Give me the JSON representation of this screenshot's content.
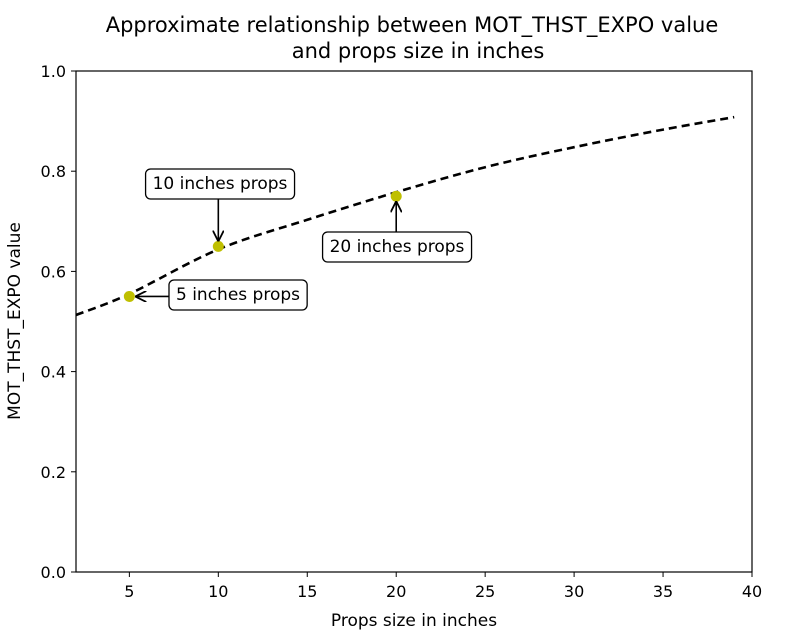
{
  "chart_data": {
    "type": "line",
    "title_lines": [
      "Approximate relationship between MOT_THST_EXPO value",
      "and props size in inches"
    ],
    "xlabel": "Props size in inches",
    "ylabel": "MOT_THST_EXPO value",
    "xlim": [
      2,
      40
    ],
    "ylim": [
      0.0,
      1.0
    ],
    "xticks": [
      5,
      10,
      15,
      20,
      25,
      30,
      35,
      40
    ],
    "yticks": [
      0.0,
      0.2,
      0.4,
      0.6,
      0.8,
      1.0
    ],
    "ytick_labels": [
      "0.0",
      "0.2",
      "0.4",
      "0.6",
      "0.8",
      "1.0"
    ],
    "curve": {
      "style": "dashed",
      "color": "#000000",
      "x": [
        2,
        5,
        10,
        15,
        20,
        25,
        30,
        35,
        39
      ],
      "y": [
        0.513,
        0.555,
        0.644,
        0.703,
        0.758,
        0.808,
        0.848,
        0.883,
        0.908
      ]
    },
    "points": {
      "color": "#bfbf00",
      "x": [
        5,
        10,
        20
      ],
      "y": [
        0.55,
        0.65,
        0.75
      ]
    },
    "annotations": [
      {
        "text": "5 inches props",
        "x": 5,
        "y": 0.55
      },
      {
        "text": "10 inches props",
        "x": 10,
        "y": 0.65
      },
      {
        "text": "20 inches props",
        "x": 20,
        "y": 0.75
      }
    ]
  }
}
